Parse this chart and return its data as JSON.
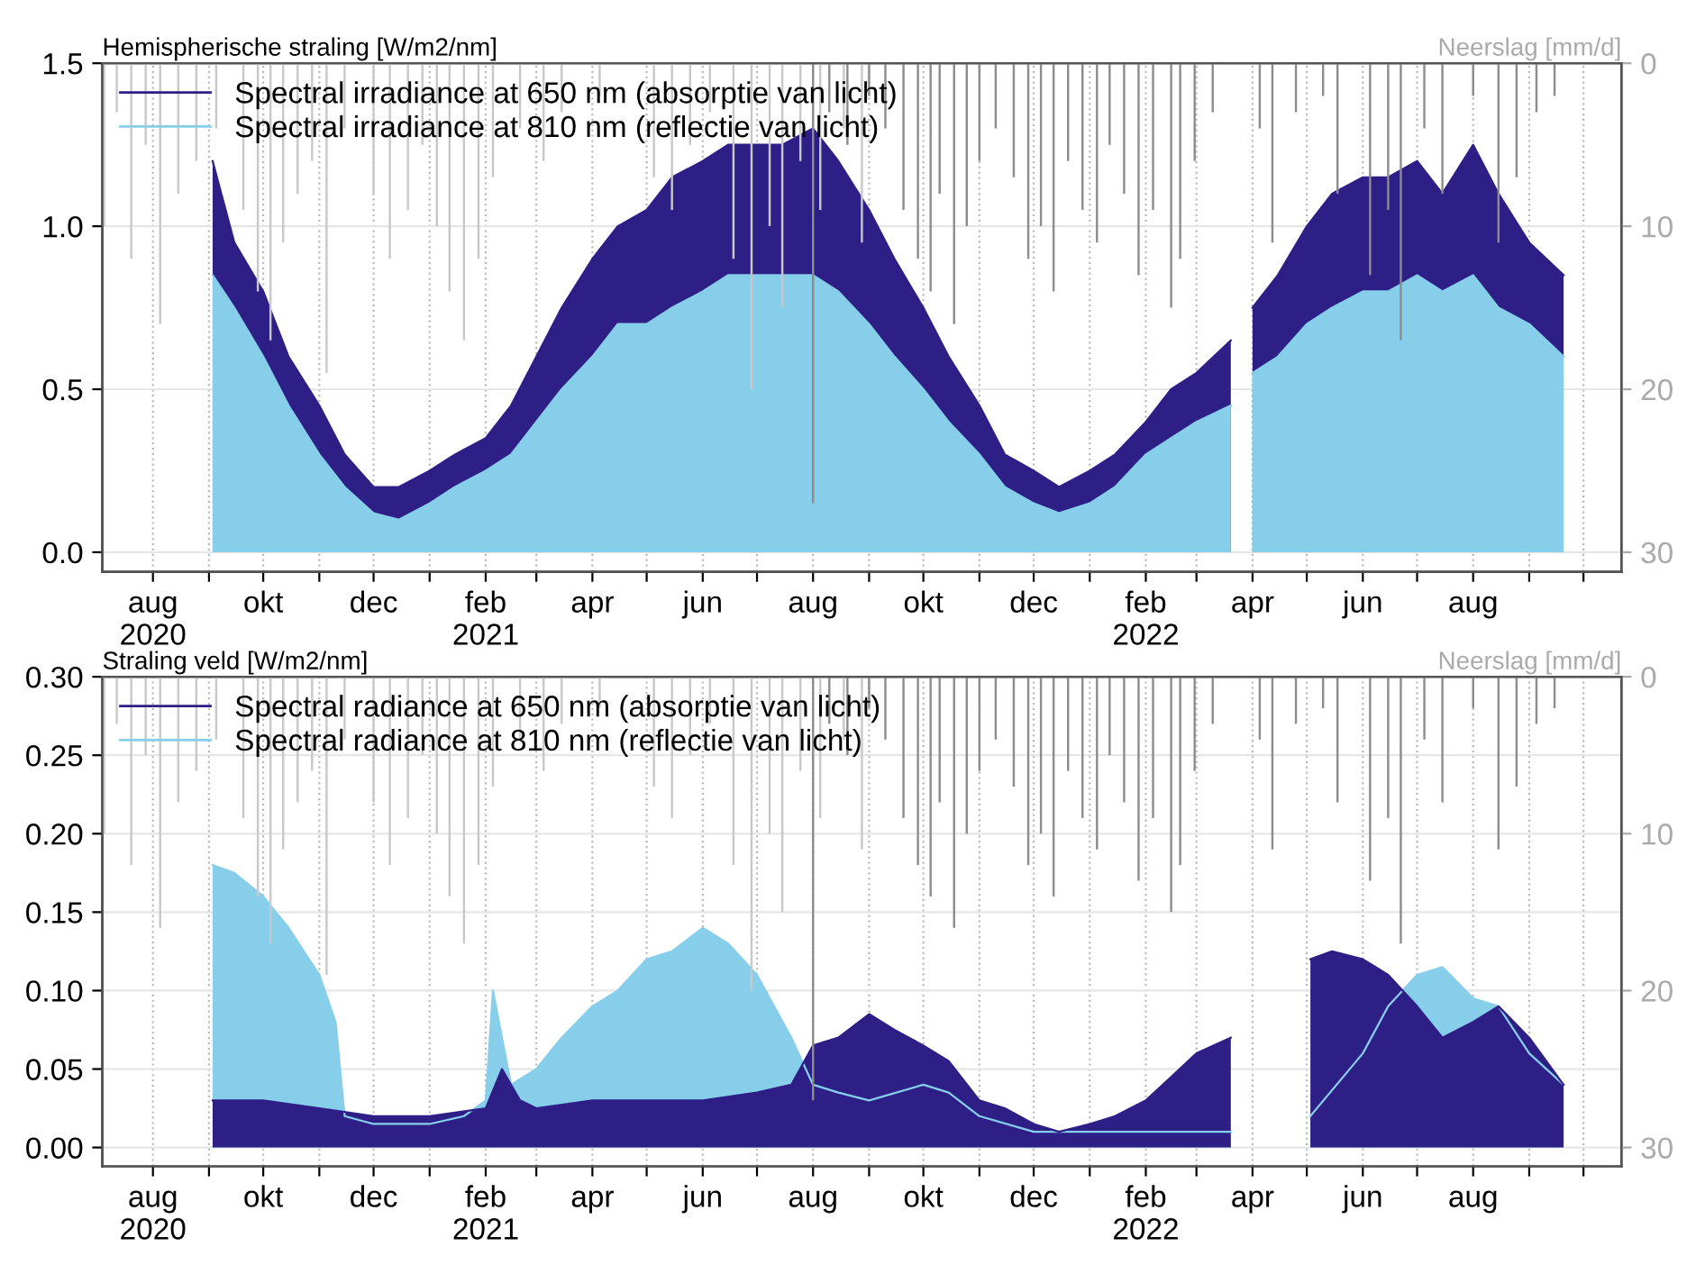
{
  "chart_data": [
    {
      "type": "area",
      "ylabel": "Hemispherische straling [W/m2/nm]",
      "y2label": "Neerslag [mm/d]",
      "legend": "top left",
      "grid": true,
      "marker": "none",
      "xlim": [
        "2020-07-04",
        "2022-10-22"
      ],
      "ylim": [
        -0.06,
        1.5
      ],
      "yticks": [
        {
          "value": 0,
          "label": "0.0"
        },
        0.5,
        {
          "value": 1,
          "label": "1.0"
        },
        1.5
      ],
      "y2lim": [
        31.2,
        0
      ],
      "y2ticks": [
        0,
        10,
        20,
        30
      ],
      "xticks": [
        {
          "value": "2020-08-01",
          "label": "aug\n2020"
        },
        {
          "value": "2020-09-01",
          "label": null
        },
        {
          "value": "2020-10-01",
          "label": "okt"
        },
        {
          "value": "2020-11-01",
          "label": null
        },
        {
          "value": "2020-12-01",
          "label": "dec"
        },
        {
          "value": "2021-01-01",
          "label": null
        },
        {
          "value": "2021-02-01",
          "label": "feb\n2021"
        },
        {
          "value": "2021-03-01",
          "label": null
        },
        {
          "value": "2021-04-01",
          "label": "apr"
        },
        {
          "value": "2021-05-01",
          "label": null
        },
        {
          "value": "2021-06-01",
          "label": "jun"
        },
        {
          "value": "2021-07-01",
          "label": null
        },
        {
          "value": "2021-08-01",
          "label": "aug"
        },
        {
          "value": "2021-09-01",
          "label": null
        },
        {
          "value": "2021-10-01",
          "label": "okt"
        },
        {
          "value": "2021-11-01",
          "label": null
        },
        {
          "value": "2021-12-01",
          "label": "dec"
        },
        {
          "value": "2022-01-01",
          "label": null
        },
        {
          "value": "2022-02-01",
          "label": "feb\n2022"
        },
        {
          "value": "2022-03-01",
          "label": null
        },
        {
          "value": "2022-04-01",
          "label": "apr"
        },
        {
          "value": "2022-05-01",
          "label": null
        },
        {
          "value": "2022-06-01",
          "label": "jun"
        },
        {
          "value": "2022-07-01",
          "label": null
        },
        {
          "value": "2022-08-01",
          "label": "aug"
        },
        {
          "value": "2022-09-01",
          "label": null
        },
        {
          "value": "2022-10-01",
          "label": null
        }
      ],
      "series": [
        {
          "type": "bar",
          "axis": "y2",
          "color": "#c8c8c8",
          "x": [
            "2020-07-05",
            "2020-07-12",
            "2020-07-20",
            "2020-07-28",
            "2020-08-05",
            "2020-08-15",
            "2020-08-25",
            "2020-09-05",
            "2020-09-20",
            "2020-09-28",
            "2020-10-05",
            "2020-10-12",
            "2020-10-20",
            "2020-10-28",
            "2020-11-05",
            "2020-11-15",
            "2020-12-01",
            "2020-12-10",
            "2020-12-20",
            "2020-12-28",
            "2021-01-05",
            "2021-01-12",
            "2021-01-20",
            "2021-01-28",
            "2021-02-05",
            "2021-02-20",
            "2021-03-05",
            "2021-03-15",
            "2021-04-05",
            "2021-05-05",
            "2021-05-15",
            "2021-05-25",
            "2021-06-05",
            "2021-06-18",
            "2021-06-28",
            "2021-07-08",
            "2021-07-15",
            "2021-07-25",
            "2021-08-05",
            "2021-08-18",
            "2021-08-28"
          ],
          "values": [
            10,
            3,
            12,
            5,
            16,
            8,
            6,
            4,
            9,
            14,
            17,
            11,
            8,
            6,
            19,
            4,
            8,
            12,
            9,
            5,
            10,
            14,
            17,
            12,
            7,
            4,
            6,
            3,
            2,
            7,
            9,
            5,
            3,
            12,
            20,
            10,
            15,
            6,
            9,
            4,
            11
          ]
        },
        {
          "type": "bar",
          "axis": "y2",
          "color": "#8c8c8c",
          "x": [
            "2021-08-01",
            "2021-08-10",
            "2021-08-20",
            "2021-09-01",
            "2021-09-10",
            "2021-09-20",
            "2021-09-28",
            "2021-10-05",
            "2021-10-10",
            "2021-10-18",
            "2021-10-25",
            "2021-11-01",
            "2021-11-10",
            "2021-11-20",
            "2021-11-28",
            "2021-12-05",
            "2021-12-12",
            "2021-12-20",
            "2021-12-28",
            "2022-01-05",
            "2022-01-12",
            "2022-01-20",
            "2022-01-28",
            "2022-02-05",
            "2022-02-15",
            "2022-02-20",
            "2022-02-28",
            "2022-03-10",
            "2022-04-05",
            "2022-04-12",
            "2022-04-25",
            "2022-05-10",
            "2022-05-18",
            "2022-06-05",
            "2022-06-15",
            "2022-06-22",
            "2022-07-05",
            "2022-07-15",
            "2022-08-01",
            "2022-08-15",
            "2022-08-25",
            "2022-09-05",
            "2022-09-15"
          ],
          "values": [
            27,
            3,
            5,
            2,
            4,
            9,
            12,
            14,
            8,
            16,
            10,
            6,
            4,
            7,
            12,
            10,
            14,
            6,
            9,
            11,
            5,
            8,
            13,
            9,
            15,
            12,
            6,
            3,
            4,
            11,
            3,
            2,
            8,
            13,
            9,
            17,
            4,
            8,
            2,
            11,
            7,
            3,
            2
          ]
        },
        {
          "name": "Spectral irradiance at 650 nm (absorptie van licht)",
          "color": "#2e1f87",
          "x": [
            "2020-09-03",
            "2020-09-15",
            "2020-10-01",
            "2020-10-15",
            "2020-11-01",
            "2020-11-15",
            "2020-12-01",
            "2020-12-15",
            "2021-01-01",
            "2021-01-15",
            "2021-02-01",
            "2021-02-15",
            "2021-03-01",
            "2021-03-15",
            "2021-04-01",
            "2021-04-15",
            "2021-05-01",
            "2021-05-15",
            "2021-06-01",
            "2021-06-15",
            "2021-07-01",
            "2021-07-15",
            "2021-08-01",
            "2021-08-15",
            "2021-09-01",
            "2021-09-15",
            "2021-10-01",
            "2021-10-15",
            "2021-11-01",
            "2021-11-15",
            "2021-12-01",
            "2021-12-15",
            "2022-01-01",
            "2022-01-15",
            "2022-02-01",
            "2022-02-15",
            "2022-03-01",
            "2022-03-20",
            "2022-03-27",
            "2022-04-01",
            "2022-04-15",
            "2022-05-01",
            "2022-05-15",
            "2022-06-01",
            "2022-06-15",
            "2022-07-01",
            "2022-07-15",
            "2022-08-01",
            "2022-08-15",
            "2022-09-01",
            "2022-09-20"
          ],
          "values": [
            1.2,
            0.95,
            0.8,
            0.6,
            0.45,
            0.3,
            0.2,
            0.2,
            0.25,
            0.3,
            0.35,
            0.45,
            0.6,
            0.75,
            0.9,
            1.0,
            1.05,
            1.15,
            1.2,
            1.25,
            1.25,
            1.25,
            1.3,
            1.2,
            1.05,
            0.9,
            0.75,
            0.6,
            0.45,
            0.3,
            0.25,
            0.2,
            0.25,
            0.3,
            0.4,
            0.5,
            0.55,
            0.65,
            null,
            0.75,
            0.85,
            1.0,
            1.1,
            1.15,
            1.15,
            1.2,
            1.1,
            1.25,
            1.1,
            0.95,
            0.85
          ]
        },
        {
          "name": "Spectral irradiance at 810 nm (reflectie van licht)",
          "color": "#87ceeb",
          "x": [
            "2020-09-03",
            "2020-09-15",
            "2020-10-01",
            "2020-10-15",
            "2020-11-01",
            "2020-11-15",
            "2020-12-01",
            "2020-12-15",
            "2021-01-01",
            "2021-01-15",
            "2021-02-01",
            "2021-02-15",
            "2021-03-01",
            "2021-03-15",
            "2021-04-01",
            "2021-04-15",
            "2021-05-01",
            "2021-05-15",
            "2021-06-01",
            "2021-06-15",
            "2021-07-01",
            "2021-07-15",
            "2021-08-01",
            "2021-08-15",
            "2021-09-01",
            "2021-09-15",
            "2021-10-01",
            "2021-10-15",
            "2021-11-01",
            "2021-11-15",
            "2021-12-01",
            "2021-12-15",
            "2022-01-01",
            "2022-01-15",
            "2022-02-01",
            "2022-02-15",
            "2022-03-01",
            "2022-03-20",
            "2022-03-27",
            "2022-04-01",
            "2022-04-15",
            "2022-05-01",
            "2022-05-15",
            "2022-06-01",
            "2022-06-15",
            "2022-07-01",
            "2022-07-15",
            "2022-08-01",
            "2022-08-15",
            "2022-09-01",
            "2022-09-20"
          ],
          "values": [
            0.85,
            0.75,
            0.6,
            0.45,
            0.3,
            0.2,
            0.12,
            0.1,
            0.15,
            0.2,
            0.25,
            0.3,
            0.4,
            0.5,
            0.6,
            0.7,
            0.7,
            0.75,
            0.8,
            0.85,
            0.85,
            0.85,
            0.85,
            0.8,
            0.7,
            0.6,
            0.5,
            0.4,
            0.3,
            0.2,
            0.15,
            0.12,
            0.15,
            0.2,
            0.3,
            0.35,
            0.4,
            0.45,
            null,
            0.55,
            0.6,
            0.7,
            0.75,
            0.8,
            0.8,
            0.85,
            0.8,
            0.85,
            0.75,
            0.7,
            0.6
          ]
        }
      ]
    },
    {
      "type": "area",
      "ylabel": "Straling veld [W/m2/nm]",
      "y2label": "Neerslag [mm/d]",
      "legend": "top left",
      "grid": true,
      "marker": "none",
      "xlim": [
        "2020-07-04",
        "2022-10-22"
      ],
      "ylim": [
        -0.012,
        0.3
      ],
      "yticks": [
        {
          "value": 0,
          "label": "0.00"
        },
        0.05,
        {
          "value": 0.1,
          "label": "0.10"
        },
        0.15,
        {
          "value": 0.2,
          "label": "0.20"
        },
        0.25,
        {
          "value": 0.3,
          "label": "0.30"
        }
      ],
      "y2lim": [
        31.2,
        0
      ],
      "y2ticks": [
        0,
        10,
        20,
        30
      ],
      "xticks": [
        {
          "value": "2020-08-01",
          "label": "aug\n2020"
        },
        {
          "value": "2020-09-01",
          "label": null
        },
        {
          "value": "2020-10-01",
          "label": "okt"
        },
        {
          "value": "2020-11-01",
          "label": null
        },
        {
          "value": "2020-12-01",
          "label": "dec"
        },
        {
          "value": "2021-01-01",
          "label": null
        },
        {
          "value": "2021-02-01",
          "label": "feb\n2021"
        },
        {
          "value": "2021-03-01",
          "label": null
        },
        {
          "value": "2021-04-01",
          "label": "apr"
        },
        {
          "value": "2021-05-01",
          "label": null
        },
        {
          "value": "2021-06-01",
          "label": "jun"
        },
        {
          "value": "2021-07-01",
          "label": null
        },
        {
          "value": "2021-08-01",
          "label": "aug"
        },
        {
          "value": "2021-09-01",
          "label": null
        },
        {
          "value": "2021-10-01",
          "label": "okt"
        },
        {
          "value": "2021-11-01",
          "label": null
        },
        {
          "value": "2021-12-01",
          "label": "dec"
        },
        {
          "value": "2022-01-01",
          "label": null
        },
        {
          "value": "2022-02-01",
          "label": "feb\n2022"
        },
        {
          "value": "2022-03-01",
          "label": null
        },
        {
          "value": "2022-04-01",
          "label": "apr"
        },
        {
          "value": "2022-05-01",
          "label": null
        },
        {
          "value": "2022-06-01",
          "label": "jun"
        },
        {
          "value": "2022-07-01",
          "label": null
        },
        {
          "value": "2022-08-01",
          "label": "aug"
        },
        {
          "value": "2022-09-01",
          "label": null
        },
        {
          "value": "2022-10-01",
          "label": null
        }
      ],
      "series": [
        {
          "type": "bar",
          "axis": "y2",
          "color": "#c8c8c8",
          "x": [
            "2020-07-05",
            "2020-07-12",
            "2020-07-20",
            "2020-07-28",
            "2020-08-05",
            "2020-08-15",
            "2020-08-25",
            "2020-09-05",
            "2020-09-20",
            "2020-09-28",
            "2020-10-05",
            "2020-10-12",
            "2020-10-20",
            "2020-10-28",
            "2020-11-05",
            "2020-11-15",
            "2020-12-01",
            "2020-12-10",
            "2020-12-20",
            "2020-12-28",
            "2021-01-05",
            "2021-01-12",
            "2021-01-20",
            "2021-01-28",
            "2021-02-05",
            "2021-02-20",
            "2021-03-05",
            "2021-03-15",
            "2021-04-05",
            "2021-05-05",
            "2021-05-15",
            "2021-05-25",
            "2021-06-05",
            "2021-06-18",
            "2021-06-28",
            "2021-07-08",
            "2021-07-15",
            "2021-07-25",
            "2021-08-05",
            "2021-08-18",
            "2021-08-28"
          ],
          "values": [
            10,
            3,
            12,
            5,
            16,
            8,
            6,
            4,
            9,
            14,
            17,
            11,
            8,
            6,
            19,
            4,
            8,
            12,
            9,
            5,
            10,
            14,
            17,
            12,
            7,
            4,
            6,
            3,
            2,
            7,
            9,
            5,
            3,
            12,
            20,
            10,
            15,
            6,
            9,
            4,
            11
          ]
        },
        {
          "type": "bar",
          "axis": "y2",
          "color": "#8c8c8c",
          "x": [
            "2021-08-01",
            "2021-08-10",
            "2021-08-20",
            "2021-09-01",
            "2021-09-10",
            "2021-09-20",
            "2021-09-28",
            "2021-10-05",
            "2021-10-10",
            "2021-10-18",
            "2021-10-25",
            "2021-11-01",
            "2021-11-10",
            "2021-11-20",
            "2021-11-28",
            "2021-12-05",
            "2021-12-12",
            "2021-12-20",
            "2021-12-28",
            "2022-01-05",
            "2022-01-12",
            "2022-01-20",
            "2022-01-28",
            "2022-02-05",
            "2022-02-15",
            "2022-02-20",
            "2022-02-28",
            "2022-03-10",
            "2022-04-05",
            "2022-04-12",
            "2022-04-25",
            "2022-05-10",
            "2022-05-18",
            "2022-06-05",
            "2022-06-15",
            "2022-06-22",
            "2022-07-05",
            "2022-07-15",
            "2022-08-01",
            "2022-08-15",
            "2022-08-25",
            "2022-09-05",
            "2022-09-15"
          ],
          "values": [
            27,
            3,
            5,
            2,
            4,
            9,
            12,
            14,
            8,
            16,
            10,
            6,
            4,
            7,
            12,
            10,
            14,
            6,
            9,
            11,
            5,
            8,
            13,
            9,
            15,
            12,
            6,
            3,
            4,
            11,
            3,
            2,
            8,
            13,
            9,
            17,
            4,
            8,
            2,
            11,
            7,
            3,
            2
          ]
        },
        {
          "name": "Spectral radiance at 650 nm (absorptie van licht)",
          "color": "#2e1f87",
          "x": [
            "2020-09-03",
            "2020-10-01",
            "2020-11-01",
            "2020-12-01",
            "2021-01-01",
            "2021-02-01",
            "2021-02-10",
            "2021-02-20",
            "2021-03-01",
            "2021-04-01",
            "2021-05-01",
            "2021-06-01",
            "2021-07-01",
            "2021-07-20",
            "2021-08-01",
            "2021-08-15",
            "2021-09-01",
            "2021-09-15",
            "2021-10-01",
            "2021-10-15",
            "2021-11-01",
            "2021-11-15",
            "2021-12-01",
            "2021-12-15",
            "2022-01-01",
            "2022-01-15",
            "2022-02-01",
            "2022-02-15",
            "2022-03-01",
            "2022-03-20",
            "2022-04-15",
            "2022-05-03",
            "2022-05-15",
            "2022-06-01",
            "2022-06-15",
            "2022-07-01",
            "2022-07-15",
            "2022-08-01",
            "2022-08-15",
            "2022-09-01",
            "2022-09-20"
          ],
          "values": [
            0.03,
            0.03,
            0.025,
            0.02,
            0.02,
            0.025,
            0.05,
            0.03,
            0.025,
            0.03,
            0.03,
            0.03,
            0.035,
            0.04,
            0.065,
            0.07,
            0.085,
            0.075,
            0.065,
            0.055,
            0.03,
            0.025,
            0.015,
            0.01,
            0.015,
            0.02,
            0.03,
            0.045,
            0.06,
            0.07,
            null,
            0.12,
            0.125,
            0.12,
            0.11,
            0.09,
            0.07,
            0.08,
            0.09,
            0.07,
            0.04
          ]
        },
        {
          "name": "Spectral radiance at 810 nm (reflectie van licht)",
          "color": "#87ceeb",
          "x": [
            "2020-09-03",
            "2020-09-15",
            "2020-10-01",
            "2020-10-15",
            "2020-11-01",
            "2020-11-10",
            "2020-11-15",
            "2020-12-01",
            "2021-01-01",
            "2021-01-20",
            "2021-02-01",
            "2021-02-05",
            "2021-02-15",
            "2021-03-01",
            "2021-03-15",
            "2021-04-01",
            "2021-04-15",
            "2021-05-01",
            "2021-05-15",
            "2021-06-01",
            "2021-06-15",
            "2021-07-01",
            "2021-07-20",
            "2021-08-01",
            "2021-08-15",
            "2021-09-01",
            "2021-10-01",
            "2021-10-15",
            "2021-11-01",
            "2021-12-01",
            "2022-01-01",
            "2022-02-01",
            "2022-03-01",
            "2022-03-20",
            "2022-04-15",
            "2022-05-03",
            "2022-06-01",
            "2022-06-15",
            "2022-07-01",
            "2022-07-15",
            "2022-08-01",
            "2022-08-15",
            "2022-09-01",
            "2022-09-20"
          ],
          "values": [
            0.18,
            0.175,
            0.16,
            0.14,
            0.11,
            0.08,
            0.02,
            0.015,
            0.015,
            0.02,
            0.03,
            0.1,
            0.04,
            0.05,
            0.07,
            0.09,
            0.1,
            0.12,
            0.125,
            0.14,
            0.13,
            0.11,
            0.07,
            0.04,
            0.035,
            0.03,
            0.04,
            0.035,
            0.02,
            0.01,
            0.01,
            0.01,
            0.01,
            0.01,
            null,
            0.02,
            0.06,
            0.09,
            0.11,
            0.115,
            0.095,
            0.09,
            0.06,
            0.04
          ]
        }
      ]
    }
  ]
}
